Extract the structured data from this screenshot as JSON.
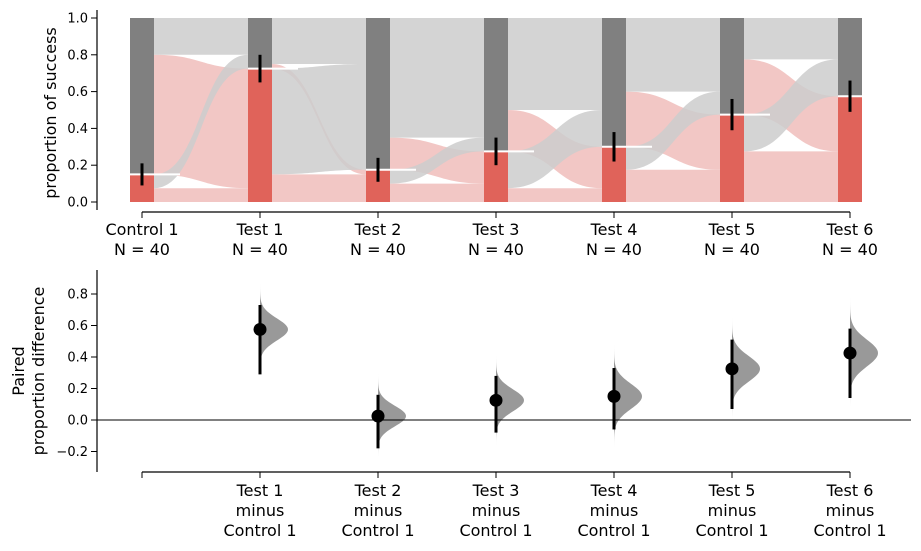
{
  "colors": {
    "control_dark": "#808080",
    "success_red": "#e0635a",
    "flow_light_red": "#f0bdbb",
    "flow_light_gray": "#cccccc",
    "violin": "#999999",
    "marker": "#000000"
  },
  "chart_data": [
    {
      "type": "bar",
      "subtype": "paired proportion plot (stacked bars with sankey flows)",
      "ylabel": "proportion of success",
      "ylim": [
        -0.05,
        1.05
      ],
      "yticks": [
        "0.0",
        "0.2",
        "0.4",
        "0.6",
        "0.8",
        "1.0"
      ],
      "grid": false,
      "categories": [
        {
          "name": "Control 1",
          "n": "N = 40"
        },
        {
          "name": "Test 1",
          "n": "N = 40"
        },
        {
          "name": "Test 2",
          "n": "N = 40"
        },
        {
          "name": "Test 3",
          "n": "N = 40"
        },
        {
          "name": "Test 4",
          "n": "N = 40"
        },
        {
          "name": "Test 5",
          "n": "N = 40"
        },
        {
          "name": "Test 6",
          "n": "N = 40"
        }
      ],
      "values": [
        0.15,
        0.725,
        0.175,
        0.275,
        0.3,
        0.475,
        0.575
      ],
      "error_bars": [
        [
          0.09,
          0.21
        ],
        [
          0.65,
          0.8
        ],
        [
          0.11,
          0.24
        ],
        [
          0.2,
          0.35
        ],
        [
          0.22,
          0.38
        ],
        [
          0.39,
          0.56
        ],
        [
          0.49,
          0.66
        ]
      ],
      "flows": [
        {
          "from": "Control 1",
          "to": "Test 1",
          "s_to_s": 0.075,
          "s_to_f": 0.075,
          "f_to_s": 0.65,
          "f_to_f": 0.2
        },
        {
          "from": "Test 1",
          "to": "Test 2",
          "s_to_s": 0.15,
          "s_to_f": 0.575,
          "f_to_s": 0.025,
          "f_to_f": 0.25
        },
        {
          "from": "Test 2",
          "to": "Test 3",
          "s_to_s": 0.1,
          "s_to_f": 0.075,
          "f_to_s": 0.175,
          "f_to_f": 0.65
        },
        {
          "from": "Test 3",
          "to": "Test 4",
          "s_to_s": 0.075,
          "s_to_f": 0.2,
          "f_to_s": 0.225,
          "f_to_f": 0.5
        },
        {
          "from": "Test 4",
          "to": "Test 5",
          "s_to_s": 0.175,
          "s_to_f": 0.125,
          "f_to_s": 0.3,
          "f_to_f": 0.4
        },
        {
          "from": "Test 5",
          "to": "Test 6",
          "s_to_s": 0.275,
          "s_to_f": 0.2,
          "f_to_s": 0.3,
          "f_to_f": 0.225
        }
      ]
    },
    {
      "type": "scatter",
      "subtype": "paired proportion difference estimation plot with bootstrap distributions",
      "ylabel_lines": [
        "Paired",
        "proportion difference"
      ],
      "ylim": [
        -0.32,
        0.96
      ],
      "yticks": [
        "−0.2",
        "0.0",
        "0.2",
        "0.4",
        "0.6",
        "0.8"
      ],
      "zero_line": 0,
      "grid": false,
      "categories": [
        {
          "lines": [
            "Test 1",
            "minus",
            "Control 1"
          ],
          "diff": 0.575,
          "ci": [
            0.29,
            0.73
          ],
          "dist_sd": 0.07,
          "range": [
            0.22,
            0.9
          ]
        },
        {
          "lines": [
            "Test 2",
            "minus",
            "Control 1"
          ],
          "diff": 0.025,
          "ci": [
            -0.18,
            0.16
          ],
          "dist_sd": 0.065,
          "range": [
            -0.26,
            0.35
          ]
        },
        {
          "lines": [
            "Test 3",
            "minus",
            "Control 1"
          ],
          "diff": 0.125,
          "ci": [
            -0.08,
            0.28
          ],
          "dist_sd": 0.07,
          "range": [
            -0.16,
            0.43
          ]
        },
        {
          "lines": [
            "Test 4",
            "minus",
            "Control 1"
          ],
          "diff": 0.15,
          "ci": [
            -0.06,
            0.33
          ],
          "dist_sd": 0.08,
          "range": [
            -0.18,
            0.49
          ]
        },
        {
          "lines": [
            "Test 5",
            "minus",
            "Control 1"
          ],
          "diff": 0.325,
          "ci": [
            0.07,
            0.51
          ],
          "dist_sd": 0.08,
          "range": [
            -0.04,
            0.65
          ]
        },
        {
          "lines": [
            "Test 6",
            "minus",
            "Control 1"
          ],
          "diff": 0.425,
          "ci": [
            0.14,
            0.58
          ],
          "dist_sd": 0.085,
          "range": [
            0.07,
            0.78
          ]
        }
      ]
    }
  ]
}
